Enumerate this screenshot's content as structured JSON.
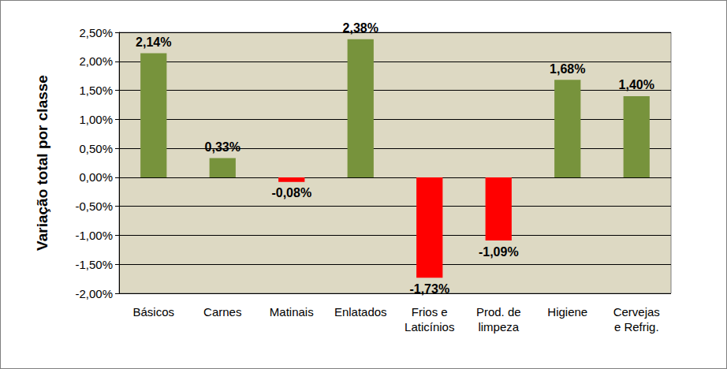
{
  "chart_data": {
    "type": "bar",
    "y_label": "Variação total por classe",
    "categories": [
      "Básicos",
      "Carnes",
      "Matinais",
      "Enlatados",
      "Frios e\nLaticínios",
      "Prod. de\nlimpeza",
      "Higiene",
      "Cervejas\ne Refrig."
    ],
    "values": [
      2.14,
      0.33,
      -0.08,
      2.38,
      -1.73,
      -1.09,
      1.68,
      1.4
    ],
    "value_labels": [
      "2,14%",
      "0,33%",
      "-0,08%",
      "2,38%",
      "-1,73%",
      "-1,09%",
      "1,68%",
      "1,40%"
    ],
    "colors": [
      "#77933c",
      "#77933c",
      "#ff0000",
      "#77933c",
      "#ff0000",
      "#ff0000",
      "#77933c",
      "#77933c"
    ],
    "ylim": [
      -2.0,
      2.5
    ],
    "yticks": [
      {
        "value": -2.0,
        "label": "-2,00%"
      },
      {
        "value": -1.5,
        "label": "-1,50%"
      },
      {
        "value": -1.0,
        "label": "-1,00%"
      },
      {
        "value": -0.5,
        "label": "-0,50%"
      },
      {
        "value": 0,
        "label": "0,00%"
      },
      {
        "value": 0.5,
        "label": "0,50%"
      },
      {
        "value": 1.0,
        "label": "1,00%"
      },
      {
        "value": 1.5,
        "label": "1,50%"
      },
      {
        "value": 2.0,
        "label": "2,00%"
      },
      {
        "value": 2.5,
        "label": "2,50%"
      }
    ],
    "grid": true,
    "data_labels": true
  }
}
